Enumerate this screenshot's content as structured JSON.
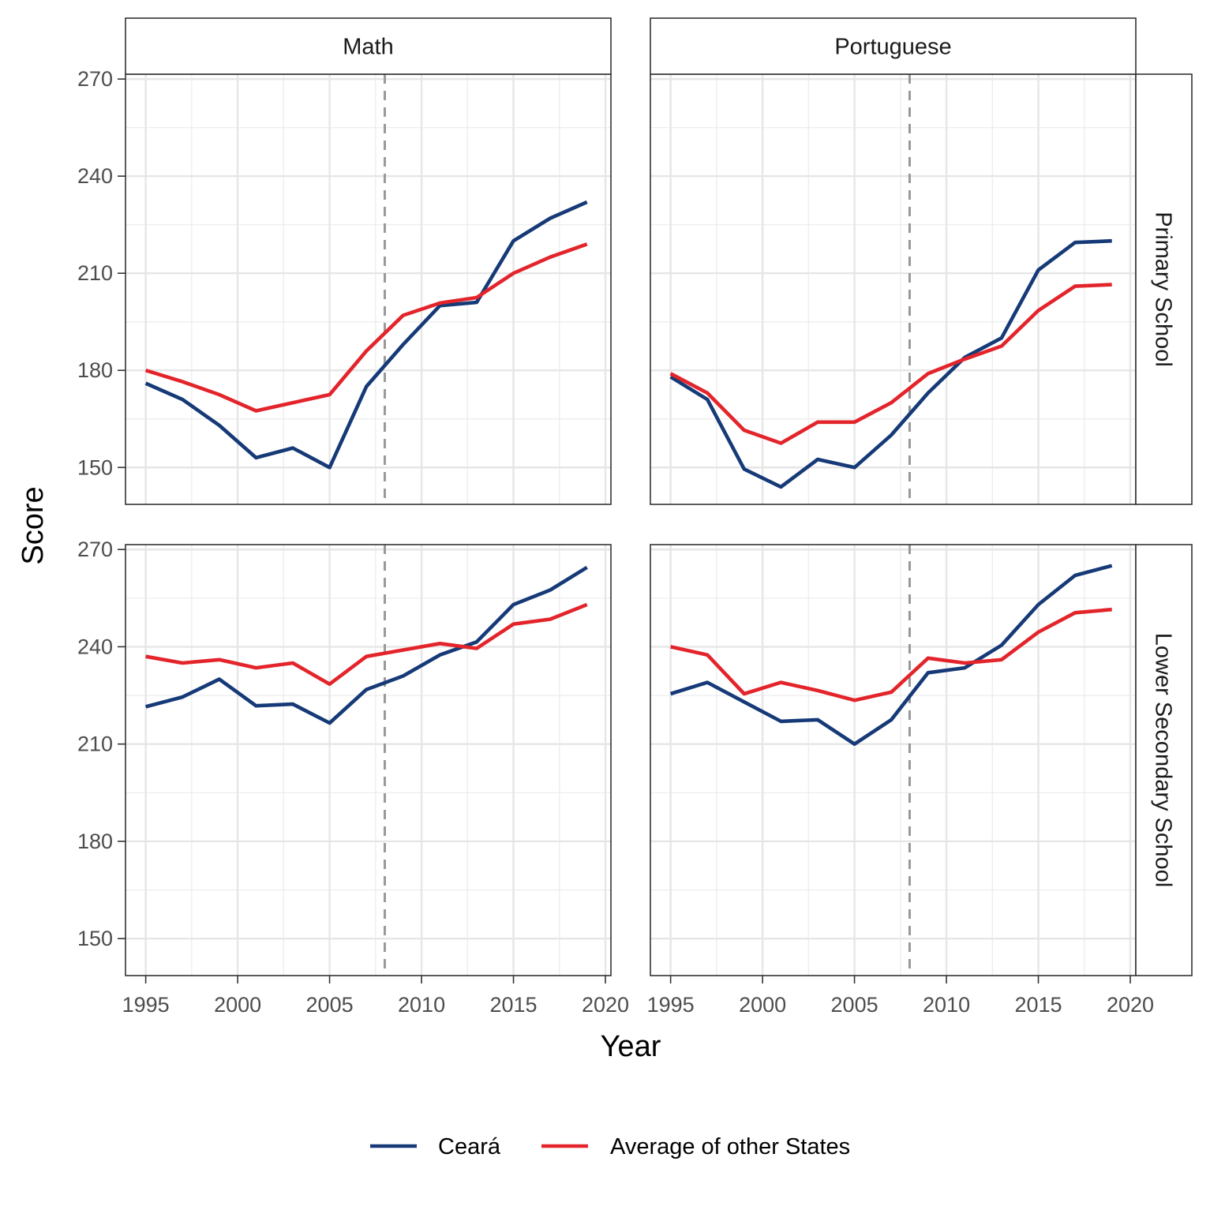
{
  "chart_data": {
    "type": "line",
    "xlabel": "Year",
    "ylabel": "Score",
    "xlim": [
      1993.9,
      2020.3
    ],
    "ylim": [
      138.6,
      271.5
    ],
    "x_ticks": [
      1995,
      2000,
      2005,
      2010,
      2015,
      2020
    ],
    "y_ticks": [
      150,
      180,
      210,
      240,
      270
    ],
    "grid": true,
    "legend_position": "bottom",
    "reference_line": {
      "x": 2008,
      "style": "dashed",
      "color": "#999999"
    },
    "col_facets": [
      "Math",
      "Portuguese"
    ],
    "row_facets": [
      "Primary School",
      "Lower Secondary School"
    ],
    "series_legend": [
      {
        "key": "ceara",
        "name": "Ceará",
        "color": "#163a77"
      },
      {
        "key": "avg",
        "name": "Average of other States",
        "color": "#e3242b"
      }
    ],
    "x": [
      1995,
      1997,
      1999,
      2001,
      2003,
      2005,
      2007,
      2009,
      2011,
      2013,
      2015,
      2017,
      2019
    ],
    "panels": [
      {
        "row": 0,
        "col": 0,
        "series": [
          {
            "key": "ceara",
            "values": [
              176,
              171,
              163,
              153,
              156,
              150,
              175,
              188,
              200,
              201,
              220,
              227,
              232
            ]
          },
          {
            "key": "avg",
            "values": [
              180,
              176.5,
              172.5,
              167.5,
              170,
              172.5,
              186,
              197,
              200.8,
              202.5,
              210,
              215,
              219
            ]
          }
        ]
      },
      {
        "row": 0,
        "col": 1,
        "series": [
          {
            "key": "ceara",
            "values": [
              178,
              171,
              149.5,
              144,
              152.5,
              150,
              160,
              173,
              184,
              190,
              211,
              219.5,
              220
            ]
          },
          {
            "key": "avg",
            "values": [
              179,
              173,
              161.5,
              157.5,
              164,
              164,
              170,
              179,
              183.5,
              187.5,
              198.5,
              206,
              206.5
            ]
          }
        ]
      },
      {
        "row": 1,
        "col": 0,
        "series": [
          {
            "key": "ceara",
            "values": [
              221.5,
              224.5,
              230,
              221.8,
              222.3,
              216.5,
              226.8,
              231,
              237.5,
              241.5,
              253,
              257.5,
              264.5
            ]
          },
          {
            "key": "avg",
            "values": [
              237,
              235,
              236,
              233.5,
              235,
              228.5,
              237,
              239,
              241,
              239.5,
              247,
              248.5,
              253
            ]
          }
        ]
      },
      {
        "row": 1,
        "col": 1,
        "series": [
          {
            "key": "ceara",
            "values": [
              225.5,
              229,
              223,
              217,
              217.5,
              210,
              217.5,
              232,
              233.5,
              240.5,
              253,
              262,
              265
            ]
          },
          {
            "key": "avg",
            "values": [
              240,
              237.5,
              225.5,
              229,
              226.5,
              223.5,
              226,
              236.5,
              235,
              236,
              244.5,
              250.5,
              251.5
            ]
          }
        ]
      }
    ]
  }
}
